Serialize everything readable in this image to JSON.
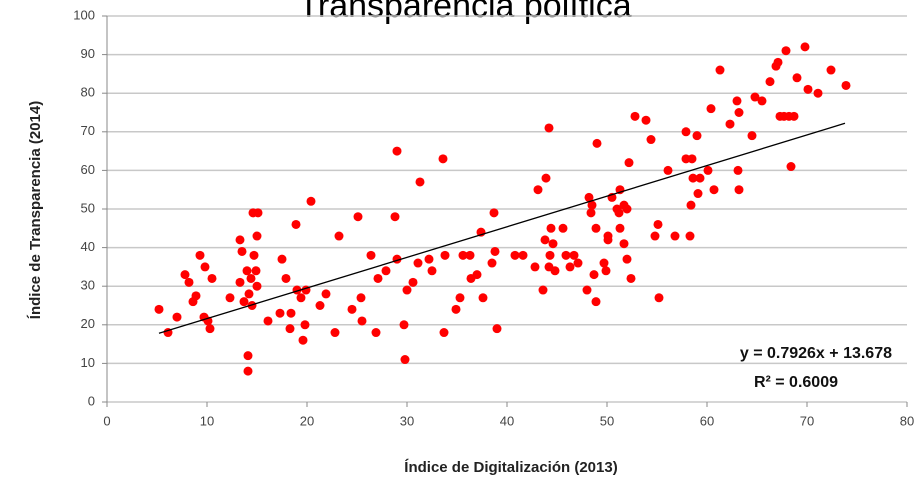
{
  "chart_data": {
    "type": "scatter",
    "title": "Transparencia política",
    "x_label": "Índice de Digitalización (2013)",
    "y_label": "Índice de Transparencia (2014)",
    "annotations": [
      "y = 0.7926x + 13.678",
      "R² = 0.6009"
    ],
    "color": "#ff0000",
    "x": [
      5.2,
      6.1,
      7,
      7.8,
      8.2,
      8.6,
      8.9,
      9.3,
      9.8,
      9.7,
      10.1,
      10.3,
      10.5,
      12.3,
      13.3,
      13.5,
      13.3,
      13.7,
      14,
      14.2,
      14.1,
      14.1,
      14.4,
      14.6,
      15.1,
      15,
      14.7,
      14.9,
      15,
      14.5,
      16.1,
      17.5,
      17.9,
      17.3,
      18.4,
      18.3,
      18.9,
      19,
      19.4,
      19.6,
      19.8,
      19.9,
      20.4,
      21.3,
      21.9,
      22.8,
      23.2,
      24.5,
      25.1,
      25.4,
      25.5,
      26.4,
      26.9,
      27.1,
      27.9,
      28.8,
      29,
      29,
      29.7,
      29.8,
      30,
      30.6,
      31.1,
      31.3,
      32.2,
      32.5,
      33.6,
      33.7,
      33.8,
      34.9,
      35.3,
      35.6,
      36.3,
      36.4,
      37,
      37.4,
      37.6,
      38.5,
      38.7,
      38.8,
      39,
      40.8,
      41.6,
      42.8,
      43.1,
      43.6,
      43.8,
      43.9,
      44.2,
      44.2,
      44.3,
      44.4,
      44.6,
      44.8,
      45.6,
      45.9,
      46.3,
      46.7,
      47.1,
      48,
      48.2,
      48.4,
      48.5,
      48.7,
      48.9,
      48.9,
      49,
      49.7,
      49.9,
      50.1,
      50.1,
      50.5,
      51,
      51.2,
      51.3,
      51.3,
      51.7,
      51.7,
      52,
      52,
      52.2,
      52.4,
      52.8,
      53.9,
      54.4,
      54.8,
      55.1,
      55.2,
      56.1,
      56.8,
      57.9,
      57.9,
      58.3,
      58.4,
      58.5,
      58.6,
      59,
      59.1,
      59.3,
      60.1,
      60.4,
      60.7,
      61.3,
      62.3,
      63,
      63.2,
      63.1,
      63.2,
      64.5,
      64.8,
      65.5,
      66.3,
      66.9,
      67.1,
      67.3,
      67.9,
      67.7,
      68.2,
      68.4,
      68.7,
      69,
      69.8,
      70.1,
      71.1,
      72.4,
      73.9
    ],
    "values": [
      24,
      18,
      22,
      33,
      31,
      26,
      27.5,
      38,
      35,
      22,
      21,
      19,
      32,
      27,
      42,
      39,
      31,
      26,
      34,
      28,
      12,
      8,
      32,
      49,
      49,
      43,
      38,
      34,
      30,
      25,
      21,
      37,
      32,
      23,
      23,
      19,
      46,
      29,
      27,
      16,
      20,
      29,
      52,
      25,
      28,
      18,
      43,
      24,
      48,
      27,
      21,
      38,
      18,
      32,
      34,
      48,
      37,
      65,
      20,
      11,
      29,
      31,
      36,
      57,
      37,
      34,
      63,
      18,
      38,
      24,
      27,
      38,
      38,
      32,
      33,
      44,
      27,
      36,
      49,
      39,
      19,
      38,
      38,
      35,
      55,
      29,
      42,
      58,
      71,
      35,
      38,
      45,
      41,
      34,
      45,
      38,
      35,
      38,
      36,
      29,
      53,
      49,
      51,
      33,
      26,
      45,
      67,
      36,
      34,
      43,
      42,
      53,
      50,
      49,
      45,
      55,
      51,
      41,
      50,
      37,
      62,
      32,
      74,
      73,
      68,
      43,
      46,
      27,
      60,
      43,
      63,
      70,
      43,
      51,
      63,
      58,
      69,
      54,
      58,
      60,
      76,
      55,
      86,
      72,
      78,
      75,
      60,
      55,
      69,
      79,
      78,
      83,
      87,
      88,
      74,
      91,
      74,
      74,
      61,
      74,
      84,
      92,
      81,
      80,
      86,
      82
    ],
    "trendline": {
      "x": [
        5.2,
        73.8
      ],
      "values": [
        17.8,
        72.2
      ],
      "color": "#000000"
    },
    "xlim": [
      0,
      80
    ],
    "ylim": [
      0,
      100
    ],
    "xticks": [
      0,
      10,
      20,
      30,
      40,
      50,
      60,
      70,
      80
    ],
    "yticks": [
      0,
      10,
      20,
      30,
      40,
      50,
      60,
      70,
      80,
      90,
      100
    ],
    "grid": true
  }
}
